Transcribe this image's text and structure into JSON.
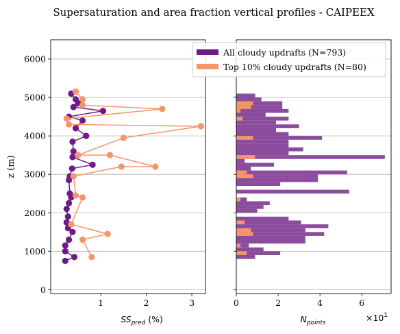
{
  "chart_data": {
    "title": "Supersaturation and area fraction vertical profiles - CAIPEEX",
    "ylabel": "z (m)",
    "ylim": [
      -100,
      6500
    ],
    "yticks": [
      0,
      1000,
      2000,
      3000,
      4000,
      5000,
      6000
    ],
    "grid": "horizontal",
    "legend_position": "top-right",
    "legend": [
      {
        "label": "All cloudy updrafts (N=793)",
        "color": "#6e1a87"
      },
      {
        "label": "Top 10% cloudy updrafts (N=80)",
        "color": "#f4956a"
      }
    ],
    "colors": {
      "all": "#6e1a87",
      "top": "#f4956a",
      "hist_all": "#8c4c9d",
      "hist_top": "#f4956a"
    },
    "panels": [
      {
        "type": "line",
        "xlabel_math": "SS",
        "xlabel_sub": "pred",
        "xlabel_unit": " (%)",
        "xlim": [
          -0.1,
          3.3
        ],
        "xticks": [
          "1",
          "2",
          "3"
        ],
        "xtick_values": [
          1,
          2,
          3
        ],
        "series": [
          {
            "name": "All cloudy updrafts (N=793)",
            "x": [
              0.35,
              0.45,
              0.5,
              0.4,
              1.05,
              0.3,
              0.6,
              0.45,
              0.68,
              0.38,
              0.4,
              0.38,
              0.82,
              0.37,
              0.32,
              0.3,
              0.32,
              0.35,
              0.3,
              0.25,
              0.28,
              0.25,
              0.28,
              0.38,
              0.3,
              0.22,
              0.22,
              0.42,
              0.22
            ],
            "z": [
              5100,
              4950,
              4850,
              4750,
              4650,
              4500,
              4400,
              4200,
              4000,
              3850,
              3600,
              3450,
              3250,
              3150,
              2950,
              2850,
              2500,
              2400,
              2250,
              2100,
              1900,
              1750,
              1600,
              1500,
              1300,
              1150,
              1000,
              850,
              750
            ]
          },
          {
            "name": "Top 10% cloudy updrafts (N=80)",
            "x": [
              0.45,
              0.6,
              0.6,
              2.35,
              0.25,
              0.3,
              3.2,
              1.5,
              0.5,
              1.2,
              2.2,
              1.45,
              0.4,
              0.45,
              0.6,
              0.35,
              1.15,
              0.6,
              0.8
            ],
            "z": [
              5150,
              4950,
              4800,
              4700,
              4450,
              4300,
              4250,
              3950,
              3500,
              3500,
              3200,
              3200,
              2950,
              2450,
              2400,
              1700,
              1450,
              1300,
              850
            ]
          }
        ]
      },
      {
        "type": "bar",
        "orientation": "horizontal",
        "xlabel_math": "N",
        "xlabel_sub": "points",
        "x_offset_label": "×10",
        "x_offset_exp": "1",
        "xlim": [
          0,
          74
        ],
        "xticks": [
          "0",
          "2",
          "4",
          "6"
        ],
        "xtick_values": [
          0,
          20,
          40,
          60
        ],
        "bin_height": 100,
        "series": [
          {
            "name": "All cloudy updrafts (N=793)",
            "bin_centers": [
              850,
              950,
              1050,
              1150,
              1250,
              1350,
              1450,
              1550,
              1650,
              1750,
              1850,
              2050,
              2150,
              2250,
              2350,
              2550,
              2750,
              2850,
              2950,
              3050,
              3150,
              3250,
              3350,
              3450,
              3550,
              3650,
              3750,
              3850,
              3950,
              4050,
              4150,
              4250,
              4350,
              4450,
              4550,
              4650,
              4750,
              4850,
              4950,
              5050
            ],
            "values": [
              9,
              21,
              13,
              6,
              33,
              33,
              42,
              33,
              44,
              31,
              25,
              10,
              13,
              16,
              5,
              54,
              21,
              39,
              39,
              53,
              7,
              18,
              4,
              71,
              25,
              32,
              25,
              25,
              41,
              25,
              19,
              30,
              19,
              25,
              14,
              25,
              22,
              22,
              12,
              9
            ]
          },
          {
            "name": "Top 10% cloudy updrafts (N=80)",
            "bin_centers": [
              950,
              1150,
              1450,
              1550,
              1750,
              2350,
              2950,
              3050,
              3450,
              3950,
              4450,
              4650,
              4750,
              4850
            ],
            "values": [
              5,
              2,
              8,
              7,
              4,
              2,
              8,
              5,
              9,
              8,
              3,
              2,
              7,
              8
            ]
          }
        ]
      }
    ]
  }
}
